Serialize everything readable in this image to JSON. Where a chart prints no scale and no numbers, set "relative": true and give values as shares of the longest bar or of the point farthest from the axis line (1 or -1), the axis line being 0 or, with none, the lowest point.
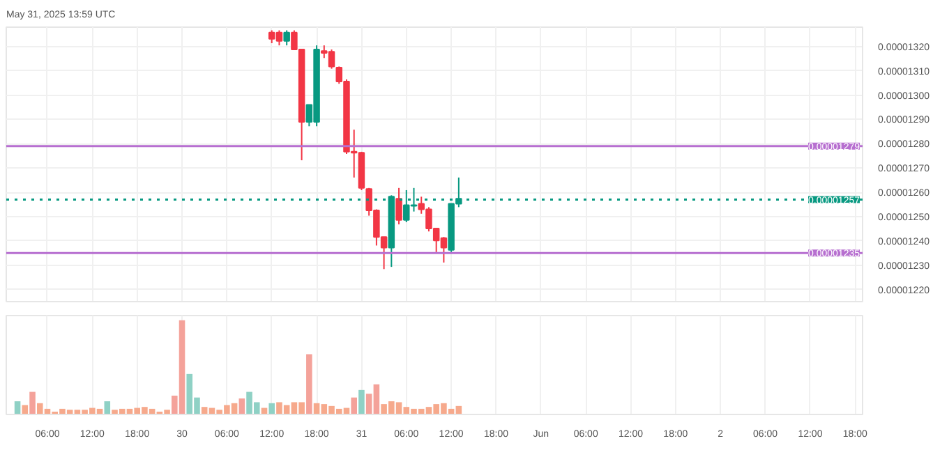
{
  "chart_data": [
    {
      "type": "candlestick",
      "annotations": [
        "May 31, 2025 13:59 UTC"
      ],
      "x": [
        "2025-05-30T12:00",
        "2025-05-30T13:00",
        "2025-05-30T14:00",
        "2025-05-30T15:00",
        "2025-05-30T16:00",
        "2025-05-30T17:00",
        "2025-05-30T18:00",
        "2025-05-30T19:00",
        "2025-05-30T20:00",
        "2025-05-30T21:00",
        "2025-05-30T22:00",
        "2025-05-30T23:00",
        "2025-05-31T00:00",
        "2025-05-31T01:00",
        "2025-05-31T02:00",
        "2025-05-31T03:00",
        "2025-05-31T04:00",
        "2025-05-31T05:00",
        "2025-05-31T06:00",
        "2025-05-31T07:00",
        "2025-05-31T08:00",
        "2025-05-31T09:00",
        "2025-05-31T10:00",
        "2025-05-31T11:00",
        "2025-05-31T12:00",
        "2025-05-31T13:00"
      ],
      "ohlc": [
        [
          1.3258e-05,
          1.3267e-05,
          1.3214e-05,
          1.3232e-05
        ],
        [
          1.3258e-05,
          1.3267e-05,
          1.3205e-05,
          1.3223e-05
        ],
        [
          1.3223e-05,
          1.3267e-05,
          1.3205e-05,
          1.3258e-05
        ],
        [
          1.3258e-05,
          1.3267e-05,
          1.3188e-05,
          1.3188e-05
        ],
        [
          1.3188e-05,
          1.3188e-05,
          1.2732e-05,
          1.289e-05
        ],
        [
          1.289e-05,
          1.296e-05,
          1.2872e-05,
          1.296e-05
        ],
        [
          1.289e-05,
          1.3205e-05,
          1.2872e-05,
          1.3188e-05
        ],
        [
          1.3182e-05,
          1.3205e-05,
          1.3153e-05,
          1.3174e-05
        ],
        [
          1.3179e-05,
          1.3188e-05,
          1.3109e-05,
          1.3118e-05
        ],
        [
          1.3114e-05,
          1.3118e-05,
          1.3047e-05,
          1.3056e-05
        ],
        [
          1.3056e-05,
          1.3065e-05,
          1.2758e-05,
          1.2767e-05
        ],
        [
          1.2767e-05,
          1.2858e-05,
          1.2661e-05,
          1.2763e-05
        ],
        [
          1.2763e-05,
          1.2767e-05,
          1.2609e-05,
          1.2618e-05
        ],
        [
          1.2614e-05,
          1.2618e-05,
          1.2504e-05,
          1.2526e-05
        ],
        [
          1.2526e-05,
          1.253e-05,
          1.2381e-05,
          1.2416e-05
        ],
        [
          1.2416e-05,
          1.2416e-05,
          1.2284e-05,
          1.2372e-05
        ],
        [
          1.2372e-05,
          1.2588e-05,
          1.2293e-05,
          1.2582e-05
        ],
        [
          1.2574e-05,
          1.2618e-05,
          1.2468e-05,
          1.2486e-05
        ],
        [
          1.2486e-05,
          1.2609e-05,
          1.2477e-05,
          1.2547e-05
        ],
        [
          1.2544e-05,
          1.2618e-05,
          1.2521e-05,
          1.2547e-05
        ],
        [
          1.2553e-05,
          1.2582e-05,
          1.2512e-05,
          1.253e-05
        ],
        [
          1.253e-05,
          1.2539e-05,
          1.2439e-05,
          1.2451e-05
        ],
        [
          1.2451e-05,
          1.2451e-05,
          1.2354e-05,
          1.2402e-05
        ],
        [
          1.2412e-05,
          1.2416e-05,
          1.2311e-05,
          1.2372e-05
        ],
        [
          1.2363e-05,
          1.2553e-05,
          1.2354e-05,
          1.2553e-05
        ],
        [
          1.2553e-05,
          1.2661e-05,
          1.2539e-05,
          1.2574e-05
        ]
      ],
      "colors": [
        "#f23645",
        "#f23645",
        "#089981",
        "#f23645",
        "#f23645",
        "#089981",
        "#089981",
        "#f23645",
        "#f23645",
        "#f23645",
        "#f23645",
        "#f23645",
        "#f23645",
        "#f23645",
        "#f23645",
        "#f23645",
        "#089981",
        "#f23645",
        "#089981",
        "#089981",
        "#f23645",
        "#f23645",
        "#f23645",
        "#f23645",
        "#089981",
        "#089981"
      ],
      "xlim": [
        "2025-05-29T00:30",
        "2025-06-02T19:00"
      ],
      "xticks": [
        {
          "value": "2025-05-29T06:00",
          "label": null
        },
        {
          "value": "2025-05-29T12:00",
          "label": null
        },
        {
          "value": "2025-05-29T18:00",
          "label": null
        },
        {
          "value": "2025-05-30T00:00",
          "label": null
        },
        {
          "value": "2025-05-30T06:00",
          "label": null
        },
        {
          "value": "2025-05-30T12:00",
          "label": null
        },
        {
          "value": "2025-05-30T18:00",
          "label": null
        },
        {
          "value": "2025-05-31T00:00",
          "label": null
        },
        {
          "value": "2025-05-31T06:00",
          "label": null
        },
        {
          "value": "2025-05-31T12:00",
          "label": null
        },
        {
          "value": "2025-05-31T18:00",
          "label": null
        },
        {
          "value": "2025-06-01T00:00",
          "label": null
        },
        {
          "value": "2025-06-01T06:00",
          "label": null
        },
        {
          "value": "2025-06-01T12:00",
          "label": null
        },
        {
          "value": "2025-06-01T18:00",
          "label": null
        },
        {
          "value": "2025-06-02T00:00",
          "label": null
        },
        {
          "value": "2025-06-02T06:00",
          "label": null
        },
        {
          "value": "2025-06-02T12:00",
          "label": null
        },
        {
          "value": "2025-06-02T18:00",
          "label": null
        }
      ],
      "ylim": [
        1.215e-05,
        1.328e-05
      ],
      "yticks": [
        {
          "value": 1.22e-05,
          "label": "0.00001220"
        },
        {
          "value": 1.23e-05,
          "label": "0.00001230"
        },
        {
          "value": 1.24e-05,
          "label": "0.00001240"
        },
        {
          "value": 1.25e-05,
          "label": "0.00001250"
        },
        {
          "value": 1.26e-05,
          "label": "0.00001260"
        },
        {
          "value": 1.27e-05,
          "label": "0.00001270"
        },
        {
          "value": 1.28e-05,
          "label": "0.00001280"
        },
        {
          "value": 1.29e-05,
          "label": "0.00001290"
        },
        {
          "value": 1.3e-05,
          "label": "0.00001300"
        },
        {
          "value": 1.31e-05,
          "label": "0.00001310"
        },
        {
          "value": 1.32e-05,
          "label": "0.00001320"
        }
      ],
      "ref_lines": [
        {
          "axis": "y",
          "value": 1.279e-05,
          "label": "0.00001279",
          "color": "#b76fd0",
          "line_style": "solid"
        },
        {
          "axis": "y",
          "value": 1.235e-05,
          "label": "0.00001235",
          "color": "#b76fd0",
          "line_style": "solid"
        },
        {
          "axis": "y",
          "value": 1.257e-05,
          "label": "0.00001257",
          "color": "#089981",
          "line_style": "dotted"
        }
      ],
      "grid": true,
      "tick_labels": "y"
    },
    {
      "type": "bar",
      "relative": true,
      "x": [
        "2025-05-29T02:00",
        "2025-05-29T03:00",
        "2025-05-29T04:00",
        "2025-05-29T05:00",
        "2025-05-29T06:00",
        "2025-05-29T07:00",
        "2025-05-29T08:00",
        "2025-05-29T09:00",
        "2025-05-29T10:00",
        "2025-05-29T11:00",
        "2025-05-29T12:00",
        "2025-05-29T13:00",
        "2025-05-29T14:00",
        "2025-05-29T15:00",
        "2025-05-29T16:00",
        "2025-05-29T17:00",
        "2025-05-29T18:00",
        "2025-05-29T19:00",
        "2025-05-29T20:00",
        "2025-05-29T21:00",
        "2025-05-29T22:00",
        "2025-05-29T23:00",
        "2025-05-30T00:00",
        "2025-05-30T01:00",
        "2025-05-30T02:00",
        "2025-05-30T03:00",
        "2025-05-30T04:00",
        "2025-05-30T05:00",
        "2025-05-30T06:00",
        "2025-05-30T07:00",
        "2025-05-30T08:00",
        "2025-05-30T09:00",
        "2025-05-30T10:00",
        "2025-05-30T11:00",
        "2025-05-30T12:00",
        "2025-05-30T13:00",
        "2025-05-30T14:00",
        "2025-05-30T15:00",
        "2025-05-30T16:00",
        "2025-05-30T17:00",
        "2025-05-30T18:00",
        "2025-05-30T19:00",
        "2025-05-30T20:00",
        "2025-05-30T21:00",
        "2025-05-30T22:00",
        "2025-05-30T23:00",
        "2025-05-31T00:00",
        "2025-05-31T01:00",
        "2025-05-31T02:00",
        "2025-05-31T03:00",
        "2025-05-31T04:00",
        "2025-05-31T05:00",
        "2025-05-31T06:00",
        "2025-05-31T07:00",
        "2025-05-31T08:00",
        "2025-05-31T09:00",
        "2025-05-31T10:00",
        "2025-05-31T11:00",
        "2025-05-31T12:00",
        "2025-05-31T13:00"
      ],
      "values": [
        0.14,
        0.1,
        0.24,
        0.12,
        0.06,
        0.03,
        0.06,
        0.05,
        0.05,
        0.05,
        0.07,
        0.06,
        0.14,
        0.05,
        0.06,
        0.06,
        0.07,
        0.08,
        0.06,
        0.03,
        0.05,
        0.2,
        1,
        0.43,
        0.18,
        0.08,
        0.07,
        0.05,
        0.1,
        0.12,
        0.17,
        0.24,
        0.13,
        0.07,
        0.12,
        0.13,
        0.1,
        0.13,
        0.13,
        0.64,
        0.12,
        0.11,
        0.09,
        0.06,
        0.07,
        0.18,
        0.26,
        0.22,
        0.32,
        0.11,
        0.14,
        0.13,
        0.08,
        0.06,
        0.06,
        0.08,
        0.11,
        0.12,
        0.06,
        0.09
      ],
      "colors": [
        "#8fd1c5",
        "#f6a98c",
        "#f4a29a",
        "#f6a98c",
        "#f6a98c",
        "#f6a98c",
        "#f6a98c",
        "#f6a98c",
        "#f6a98c",
        "#f6a98c",
        "#f6a98c",
        "#f6a98c",
        "#8fd1c5",
        "#f6a98c",
        "#f6a98c",
        "#f6a98c",
        "#f6a98c",
        "#f6a98c",
        "#f6a98c",
        "#f6a98c",
        "#f6a98c",
        "#f4a29a",
        "#f4a29a",
        "#8fd1c5",
        "#8fd1c5",
        "#f6a98c",
        "#f6a98c",
        "#f6a98c",
        "#f6a98c",
        "#f6a98c",
        "#f4a29a",
        "#8fd1c5",
        "#8fd1c5",
        "#f6a98c",
        "#8fd1c5",
        "#f6a98c",
        "#f6a98c",
        "#f6a98c",
        "#f6a98c",
        "#f4a29a",
        "#f6a98c",
        "#f6a98c",
        "#f6a98c",
        "#f6a98c",
        "#f6a98c",
        "#f4a29a",
        "#8fd1c5",
        "#f4a29a",
        "#f4a29a",
        "#f6a98c",
        "#f6a98c",
        "#f6a98c",
        "#f6a98c",
        "#f6a98c",
        "#f6a98c",
        "#f6a98c",
        "#f6a98c",
        "#f6a98c",
        "#f6a98c",
        "#f6a98c"
      ],
      "xlim": [
        "2025-05-29T00:30",
        "2025-06-02T19:00"
      ],
      "xticks": [
        {
          "value": "2025-05-29T06:00",
          "label": "06:00"
        },
        {
          "value": "2025-05-29T12:00",
          "label": "12:00"
        },
        {
          "value": "2025-05-29T18:00",
          "label": "18:00"
        },
        {
          "value": "2025-05-30T00:00",
          "label": "30"
        },
        {
          "value": "2025-05-30T06:00",
          "label": "06:00"
        },
        {
          "value": "2025-05-30T12:00",
          "label": "12:00"
        },
        {
          "value": "2025-05-30T18:00",
          "label": "18:00"
        },
        {
          "value": "2025-05-31T00:00",
          "label": "31"
        },
        {
          "value": "2025-05-31T06:00",
          "label": "06:00"
        },
        {
          "value": "2025-05-31T12:00",
          "label": "12:00"
        },
        {
          "value": "2025-05-31T18:00",
          "label": "18:00"
        },
        {
          "value": "2025-06-01T00:00",
          "label": "Jun"
        },
        {
          "value": "2025-06-01T06:00",
          "label": "06:00"
        },
        {
          "value": "2025-06-01T12:00",
          "label": "12:00"
        },
        {
          "value": "2025-06-01T18:00",
          "label": "18:00"
        },
        {
          "value": "2025-06-02T00:00",
          "label": "2"
        },
        {
          "value": "2025-06-02T06:00",
          "label": "06:00"
        },
        {
          "value": "2025-06-02T12:00",
          "label": "12:00"
        },
        {
          "value": "2025-06-02T18:00",
          "label": "18:00"
        }
      ],
      "grid": true,
      "tick_labels": "x"
    }
  ]
}
